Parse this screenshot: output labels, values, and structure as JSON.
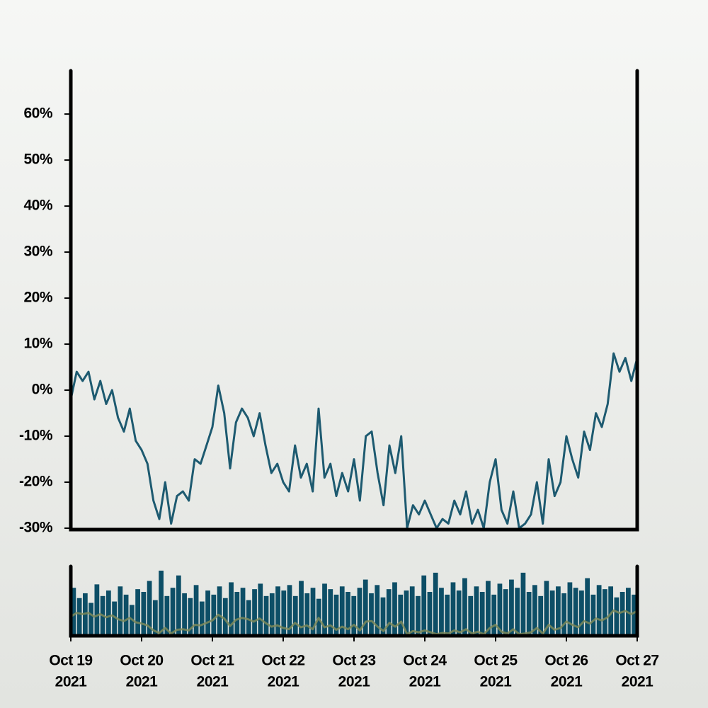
{
  "chart_data": {
    "type": "line",
    "xlim": [
      "2021-10-19",
      "2021-10-27"
    ],
    "xticks": [
      {
        "value": "2021-10-19",
        "label": [
          "Oct 19",
          "2021"
        ]
      },
      {
        "value": "2021-10-20",
        "label": [
          "Oct 20",
          "2021"
        ]
      },
      {
        "value": "2021-10-21",
        "label": [
          "Oct 21",
          "2021"
        ]
      },
      {
        "value": "2021-10-22",
        "label": [
          "Oct 22",
          "2021"
        ]
      },
      {
        "value": "2021-10-23",
        "label": [
          "Oct 23",
          "2021"
        ]
      },
      {
        "value": "2021-10-24",
        "label": [
          "Oct 24",
          "2021"
        ]
      },
      {
        "value": "2021-10-25",
        "label": [
          "Oct 25",
          "2021"
        ]
      },
      {
        "value": "2021-10-26",
        "label": [
          "Oct 26",
          "2021"
        ]
      },
      {
        "value": "2021-10-27",
        "label": [
          "Oct 27",
          "2021"
        ]
      }
    ],
    "ylim": [
      -30.3,
      69.4
    ],
    "yticks": [
      {
        "value": -30,
        "label": "-30%"
      },
      {
        "value": -20,
        "label": "-20%"
      },
      {
        "value": -10,
        "label": "-10%"
      },
      {
        "value": 0,
        "label": "0%"
      },
      {
        "value": 10,
        "label": "10%"
      },
      {
        "value": 20,
        "label": "20%"
      },
      {
        "value": 30,
        "label": "30%"
      },
      {
        "value": 40,
        "label": "40%"
      },
      {
        "value": 50,
        "label": "50%"
      },
      {
        "value": 60,
        "label": "60%"
      }
    ],
    "series": [
      {
        "color": "#1d5a70",
        "values": [
          -2,
          4,
          2,
          4,
          -2,
          2,
          -3,
          0,
          -6,
          -9,
          -4,
          -11,
          -13,
          -16,
          -24,
          -28,
          -20,
          -29,
          -23,
          -22,
          -24,
          -15,
          -16,
          -12,
          -8,
          1,
          -5,
          -17,
          -7,
          -4,
          -6,
          -10,
          -5,
          -12,
          -18,
          -16,
          -20,
          -22,
          -12,
          -19,
          -16,
          -22,
          -4,
          -19,
          -16,
          -23,
          -18,
          -22,
          -15,
          -24,
          -10,
          -9,
          -18,
          -25,
          -12,
          -18,
          -10,
          -30,
          -25,
          -27,
          -24,
          -27,
          -30,
          -28,
          -29,
          -24,
          -27,
          -22,
          -29,
          -26,
          -30,
          -20,
          -15,
          -26,
          -29,
          -22,
          -30,
          -29,
          -27,
          -20,
          -29,
          -15,
          -23,
          -20,
          -10,
          -15,
          -19,
          -9,
          -13,
          -5,
          -8,
          -3,
          8,
          4,
          7,
          2,
          7
        ]
      }
    ],
    "volume": {
      "color": "#0d4e66",
      "navigator_color": "#7d8a5a",
      "values": [
        70,
        55,
        62,
        48,
        75,
        58,
        66,
        50,
        72,
        60,
        45,
        68,
        64,
        80,
        52,
        95,
        58,
        70,
        88,
        62,
        55,
        74,
        50,
        66,
        60,
        72,
        55,
        78,
        64,
        70,
        52,
        68,
        76,
        58,
        62,
        72,
        66,
        74,
        58,
        80,
        62,
        70,
        54,
        76,
        68,
        60,
        72,
        64,
        58,
        70,
        82,
        62,
        74,
        56,
        68,
        78,
        60,
        66,
        72,
        58,
        88,
        64,
        92,
        70,
        60,
        78,
        66,
        84,
        58,
        72,
        64,
        80,
        60,
        76,
        68,
        82,
        70,
        92,
        64,
        74,
        58,
        80,
        66,
        72,
        62,
        78,
        70,
        66,
        84,
        60,
        74,
        68,
        72,
        56,
        64,
        70,
        60
      ]
    }
  }
}
